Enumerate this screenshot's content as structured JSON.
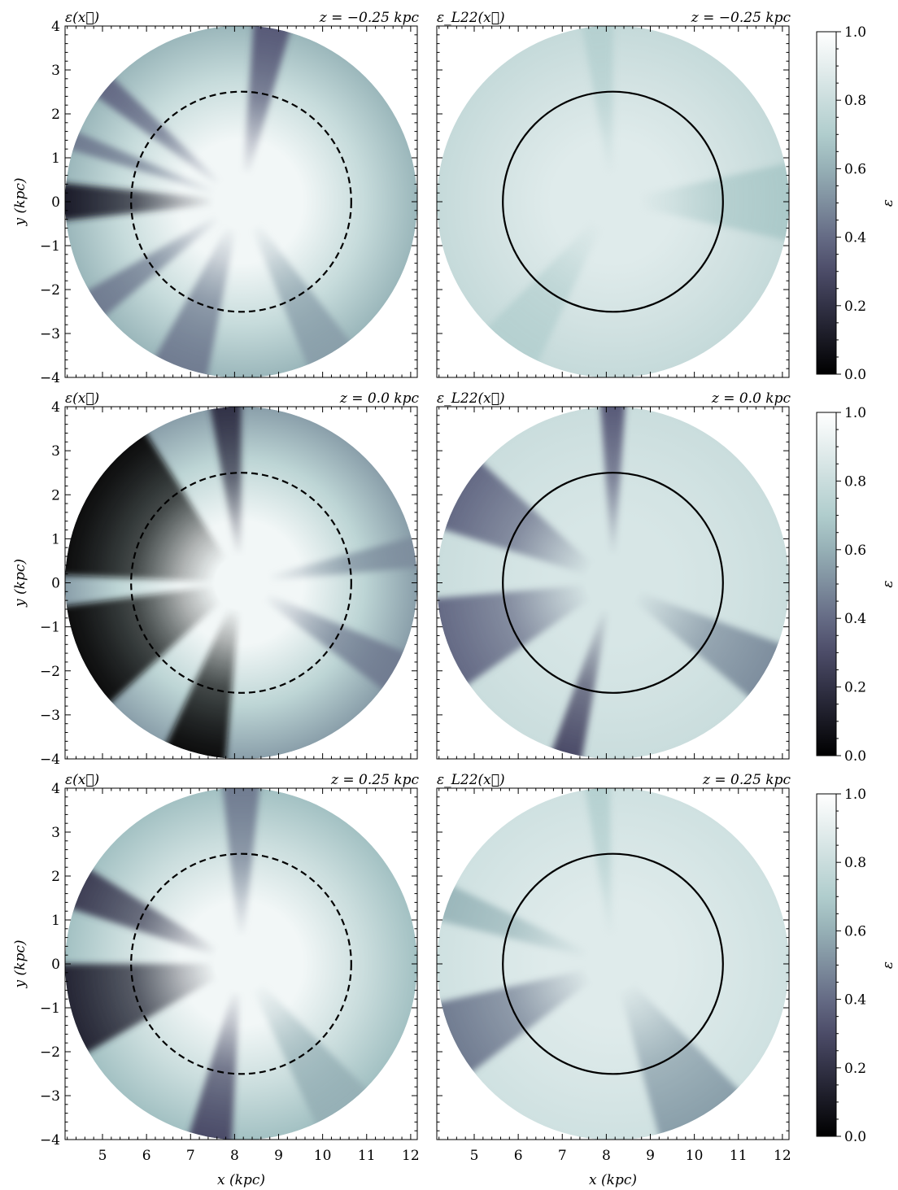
{
  "chart_data": {
    "type": "heatmap",
    "colormap": "bone",
    "colormap_stops": [
      "#000000",
      "#545474",
      "#a7c7c7",
      "#ffffff"
    ],
    "xlabel": "x (kpc)",
    "ylabel": "y (kpc)",
    "xlim": [
      4.15,
      12.15
    ],
    "ylim": [
      -4,
      4
    ],
    "xticks": [
      5,
      6,
      7,
      8,
      9,
      10,
      11,
      12
    ],
    "yticks": [
      -4,
      -3,
      -2,
      -1,
      0,
      1,
      2,
      3,
      4
    ],
    "colorbar": {
      "label": "ε",
      "range": [
        0,
        1
      ],
      "ticks": [
        "0.0",
        "0.2",
        "0.4",
        "0.6",
        "0.8",
        "1.0"
      ]
    },
    "map_center_kpc": [
      8.15,
      0.0
    ],
    "map_radius_kpc": 4.0,
    "reference_circle_radius_kpc": 2.5,
    "rows": [
      {
        "z_label": "z = −0.25 kpc",
        "left": {
          "title": "ε(x⃗)",
          "circle_style": "dashed",
          "edge_value": 0.62,
          "inner_value": 0.95,
          "dark_wedges": [
            {
              "angle_deg": 180,
              "width_deg": 12,
              "value": 0.12
            },
            {
              "angle_deg": 140,
              "width_deg": 8,
              "value": 0.4
            },
            {
              "angle_deg": 160,
              "width_deg": 6,
              "value": 0.45
            },
            {
              "angle_deg": 80,
              "width_deg": 12,
              "value": 0.35
            },
            {
              "angle_deg": 250,
              "width_deg": 18,
              "value": 0.45
            },
            {
              "angle_deg": 215,
              "width_deg": 10,
              "value": 0.45
            },
            {
              "angle_deg": 300,
              "width_deg": 16,
              "value": 0.55
            }
          ]
        },
        "right": {
          "title": "ε_L22(x⃗)",
          "circle_style": "solid",
          "edge_value": 0.78,
          "inner_value": 0.88,
          "dark_wedges": [
            {
              "angle_deg": 0,
              "width_deg": 25,
              "value": 0.68
            },
            {
              "angle_deg": 95,
              "width_deg": 10,
              "value": 0.72
            },
            {
              "angle_deg": 235,
              "width_deg": 20,
              "value": 0.72
            }
          ]
        }
      },
      {
        "z_label": "z = 0.0 kpc",
        "left": {
          "title": "ε(x⃗)",
          "circle_style": "dashed",
          "edge_value": 0.55,
          "inner_value": 0.95,
          "dark_wedges": [
            {
              "angle_deg": 150,
              "width_deg": 55,
              "value": 0.03
            },
            {
              "angle_deg": 205,
              "width_deg": 35,
              "value": 0.05
            },
            {
              "angle_deg": 255,
              "width_deg": 20,
              "value": 0.03
            },
            {
              "angle_deg": 95,
              "width_deg": 10,
              "value": 0.2
            },
            {
              "angle_deg": 330,
              "width_deg": 14,
              "value": 0.45
            },
            {
              "angle_deg": 10,
              "width_deg": 10,
              "value": 0.5
            }
          ]
        },
        "right": {
          "title": "ε_L22(x⃗)",
          "circle_style": "solid",
          "edge_value": 0.8,
          "inner_value": 0.85,
          "dark_wedges": [
            {
              "angle_deg": 150,
              "width_deg": 25,
              "value": 0.4
            },
            {
              "angle_deg": 200,
              "width_deg": 30,
              "value": 0.4
            },
            {
              "angle_deg": 255,
              "width_deg": 10,
              "value": 0.3
            },
            {
              "angle_deg": 90,
              "width_deg": 8,
              "value": 0.35
            },
            {
              "angle_deg": 330,
              "width_deg": 20,
              "value": 0.5
            }
          ]
        }
      },
      {
        "z_label": "z = 0.25 kpc",
        "left": {
          "title": "ε(x⃗)",
          "circle_style": "dashed",
          "edge_value": 0.65,
          "inner_value": 0.95,
          "dark_wedges": [
            {
              "angle_deg": 155,
              "width_deg": 14,
              "value": 0.25
            },
            {
              "angle_deg": 195,
              "width_deg": 30,
              "value": 0.15
            },
            {
              "angle_deg": 260,
              "width_deg": 14,
              "value": 0.3
            },
            {
              "angle_deg": 90,
              "width_deg": 12,
              "value": 0.45
            },
            {
              "angle_deg": 305,
              "width_deg": 20,
              "value": 0.6
            }
          ]
        },
        "right": {
          "title": "ε_L22(x⃗)",
          "circle_style": "solid",
          "edge_value": 0.82,
          "inner_value": 0.88,
          "dark_wedges": [
            {
              "angle_deg": 205,
              "width_deg": 25,
              "value": 0.45
            },
            {
              "angle_deg": 300,
              "width_deg": 30,
              "value": 0.55
            },
            {
              "angle_deg": 160,
              "width_deg": 12,
              "value": 0.62
            },
            {
              "angle_deg": 95,
              "width_deg": 8,
              "value": 0.72
            }
          ]
        }
      }
    ]
  }
}
